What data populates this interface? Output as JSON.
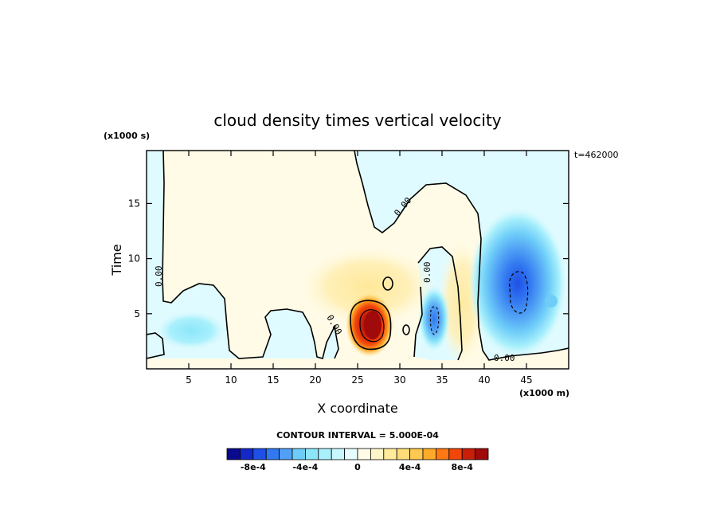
{
  "chart_data": {
    "type": "heatmap",
    "title": "cloud density times vertical velocity",
    "xlabel": "X coordinate",
    "ylabel": "Time",
    "x_unit": "(x1000 m)",
    "y_unit": "(x1000 s)",
    "time_stamp": "t=462000",
    "contour_interval": "CONTOUR INTERVAL = 5.000E-04",
    "xlim": [
      0,
      50
    ],
    "ylim": [
      0,
      19.8
    ],
    "x_ticks": [
      5,
      10,
      15,
      20,
      25,
      30,
      35,
      40,
      45
    ],
    "y_ticks": [
      5,
      10,
      15
    ],
    "colorbar": {
      "levels": [
        -0.001,
        -0.0009,
        -0.0008,
        -0.0007,
        -0.0006,
        -0.0005,
        -0.0004,
        -0.0003,
        -0.0002,
        -0.0001,
        0,
        0.0001,
        0.0002,
        0.0003,
        0.0004,
        0.0005,
        0.0006,
        0.0007,
        0.0008,
        0.0009,
        0.001
      ],
      "colors": [
        "#0a0a8c",
        "#1428c8",
        "#1e50e6",
        "#3278f0",
        "#50a0f5",
        "#6ecdf8",
        "#8ce6fa",
        "#aaf0fc",
        "#c8f8fd",
        "#e6fcff",
        "#fffbe6",
        "#fff5c8",
        "#ffeb9b",
        "#ffdc78",
        "#ffc850",
        "#ffaa28",
        "#ff7814",
        "#f0460a",
        "#c81e0a",
        "#a00a0a"
      ],
      "tick_labels": [
        "-8e-4",
        "-4e-4",
        "0",
        "4e-4",
        "8e-4"
      ],
      "tick_values": [
        -0.0008,
        -0.0004,
        0,
        0.0004,
        0.0008
      ]
    },
    "features": [
      {
        "name": "updraft core",
        "x": 27.5,
        "y": 3.5,
        "peak": 0.001
      },
      {
        "name": "positive halo",
        "x": 27,
        "y": 6,
        "peak": 0.0002
      },
      {
        "name": "downdraft",
        "x": 34,
        "y": 4.5,
        "peak": -0.0006
      },
      {
        "name": "strong downdraft",
        "x": 44,
        "y": 6.5,
        "peak": -0.0008
      },
      {
        "name": "weak downdraft",
        "x": 4.5,
        "y": 3,
        "peak": -0.0003
      }
    ],
    "contour_labels": [
      "0.00",
      "0.00",
      "0.00",
      "0.00",
      "0.00"
    ]
  }
}
